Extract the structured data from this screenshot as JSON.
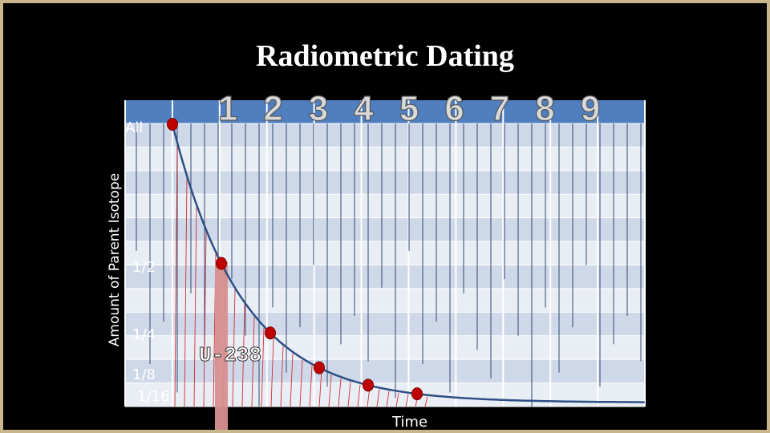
{
  "slide": {
    "title": "Radiometric Dating"
  },
  "chart_data": {
    "type": "line",
    "title": "Radiometric Dating",
    "xlabel": "Time",
    "ylabel": "Amount of Parent Isotope",
    "y_tick_labels": [
      "All",
      "1/2",
      "1/4",
      "1/8",
      "1/16"
    ],
    "y_tick_values": [
      1,
      0.5,
      0.25,
      0.125,
      0.0625
    ],
    "half_life_labels": [
      "1",
      "2",
      "3",
      "4",
      "5",
      "6",
      "7",
      "8",
      "9"
    ],
    "series": [
      {
        "x": [
          0,
          1,
          2,
          3,
          4,
          5
        ],
        "y": [
          1,
          0.5,
          0.25,
          0.125,
          0.0625,
          0.03125
        ]
      }
    ],
    "highlight_label": "U-238",
    "highlight_half_life": 1,
    "grid": true,
    "colors": {
      "curve": "#2e4f85",
      "marker": "#c00000",
      "decay_line": "#d01010",
      "highlight_bar": "#d89090",
      "header_band": "#4f7fbf",
      "row_light": "#e9edf4",
      "row_dark": "#cfd8e8",
      "grid_line": "#1f3864",
      "half_life_fill": "#d9d9d9"
    }
  }
}
